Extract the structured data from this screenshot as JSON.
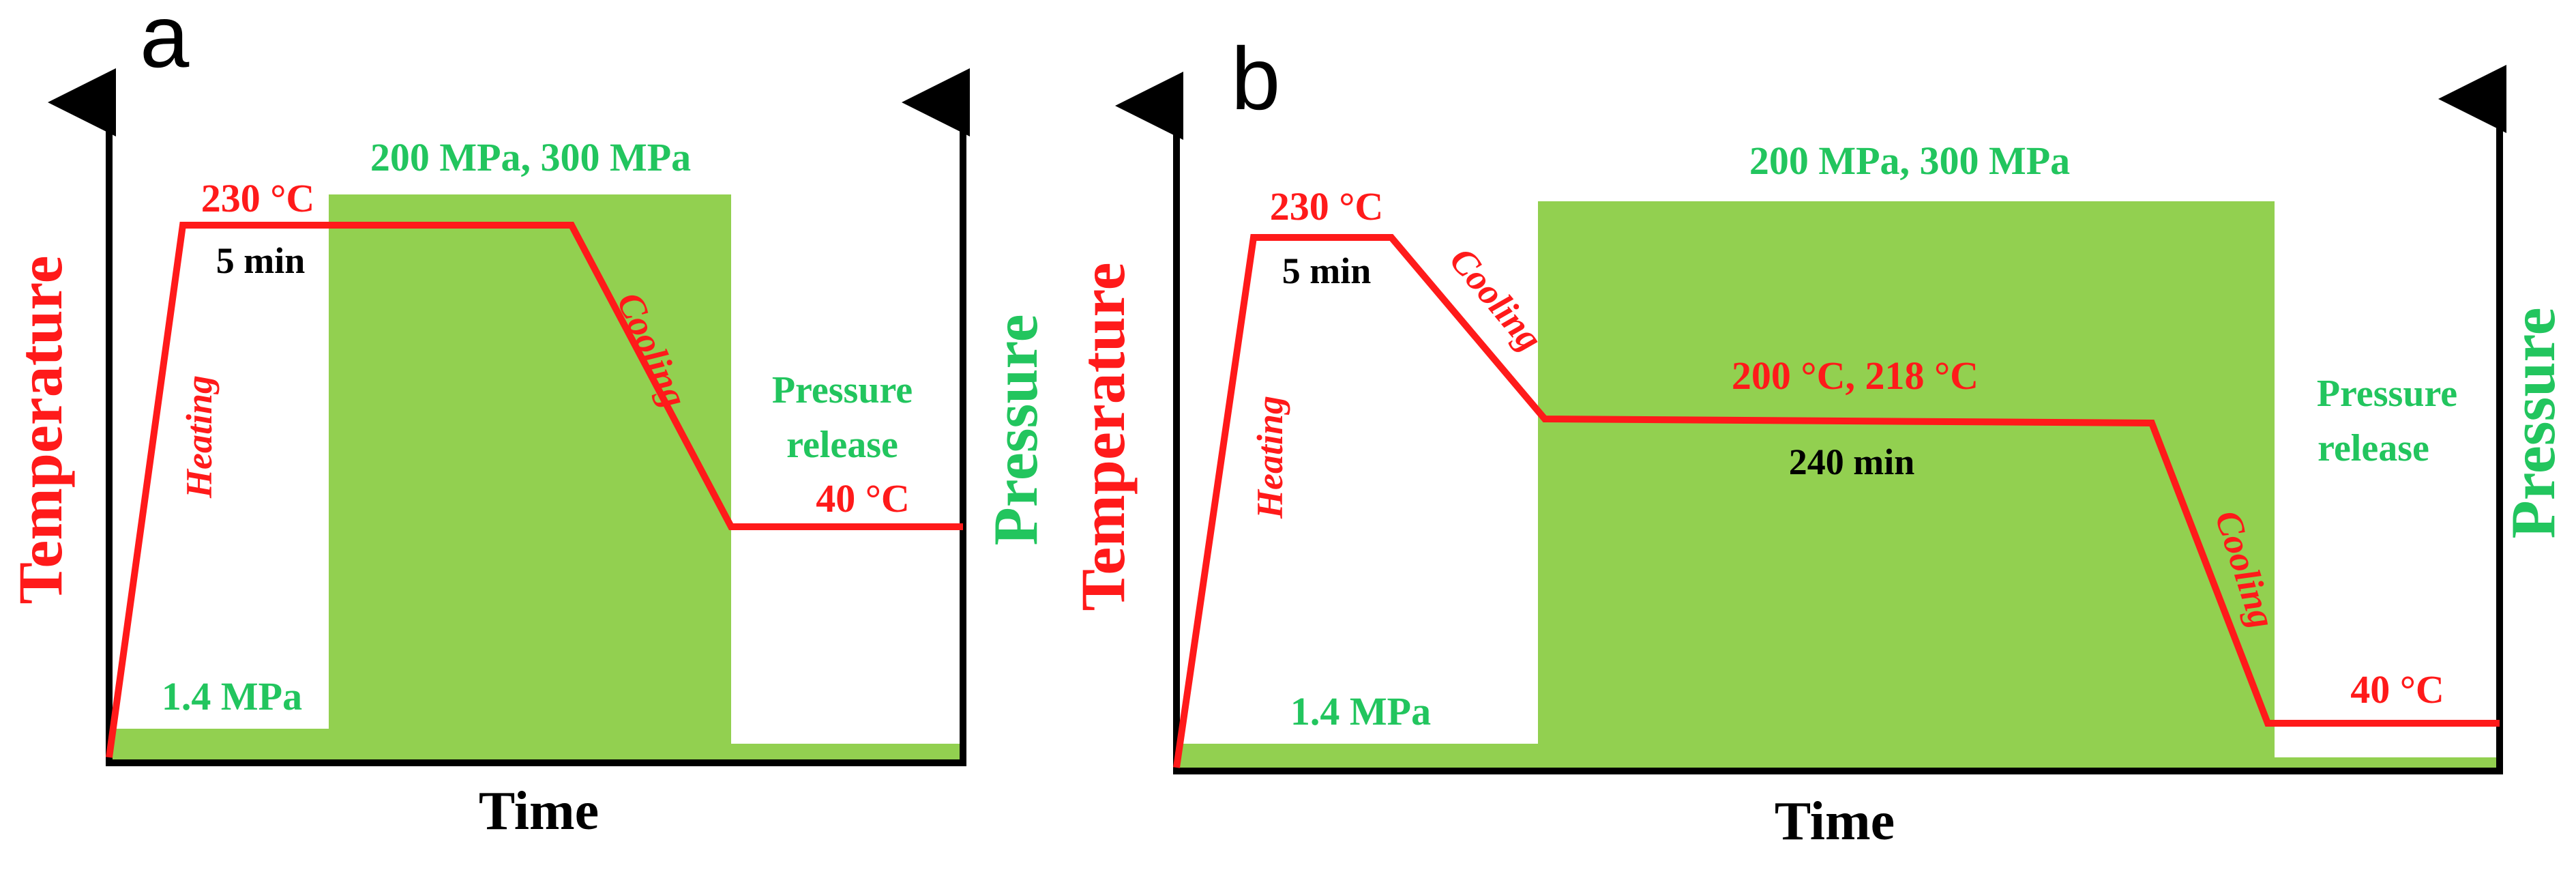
{
  "colors": {
    "temperature": "#ff1a1a",
    "pressure": "#22c55e",
    "pressure_fill": "#92d050",
    "axis": "#000000",
    "text": "#000000"
  },
  "panels": [
    {
      "id": "a",
      "letter": "a",
      "y_axis_left": "Temperature",
      "y_axis_right": "Pressure",
      "x_axis": "Time",
      "low_pressure": "1.4 MPa",
      "high_pressure": "200 MPa, 300 MPa",
      "peak_temp": "230 °C",
      "hold_time": "5 min",
      "heating": "Heating",
      "cooling": "Cooling",
      "pressure_release_1": "Pressure",
      "pressure_release_2": "release",
      "final_temp": "40 °C"
    },
    {
      "id": "b",
      "letter": "b",
      "y_axis_left": "Temperature",
      "y_axis_right": "Pressure",
      "x_axis": "Time",
      "low_pressure": "1.4 MPa",
      "high_pressure": "200 MPa, 300 MPa",
      "peak_temp": "230 °C",
      "hold_time": "5 min",
      "heating": "Heating",
      "cooling_1": "Cooling",
      "mid_temp": "200 °C, 218 °C",
      "mid_hold": "240 min",
      "cooling_2": "Cooling",
      "pressure_release_1": "Pressure",
      "pressure_release_2": "release",
      "final_temp": "40 °C"
    }
  ]
}
